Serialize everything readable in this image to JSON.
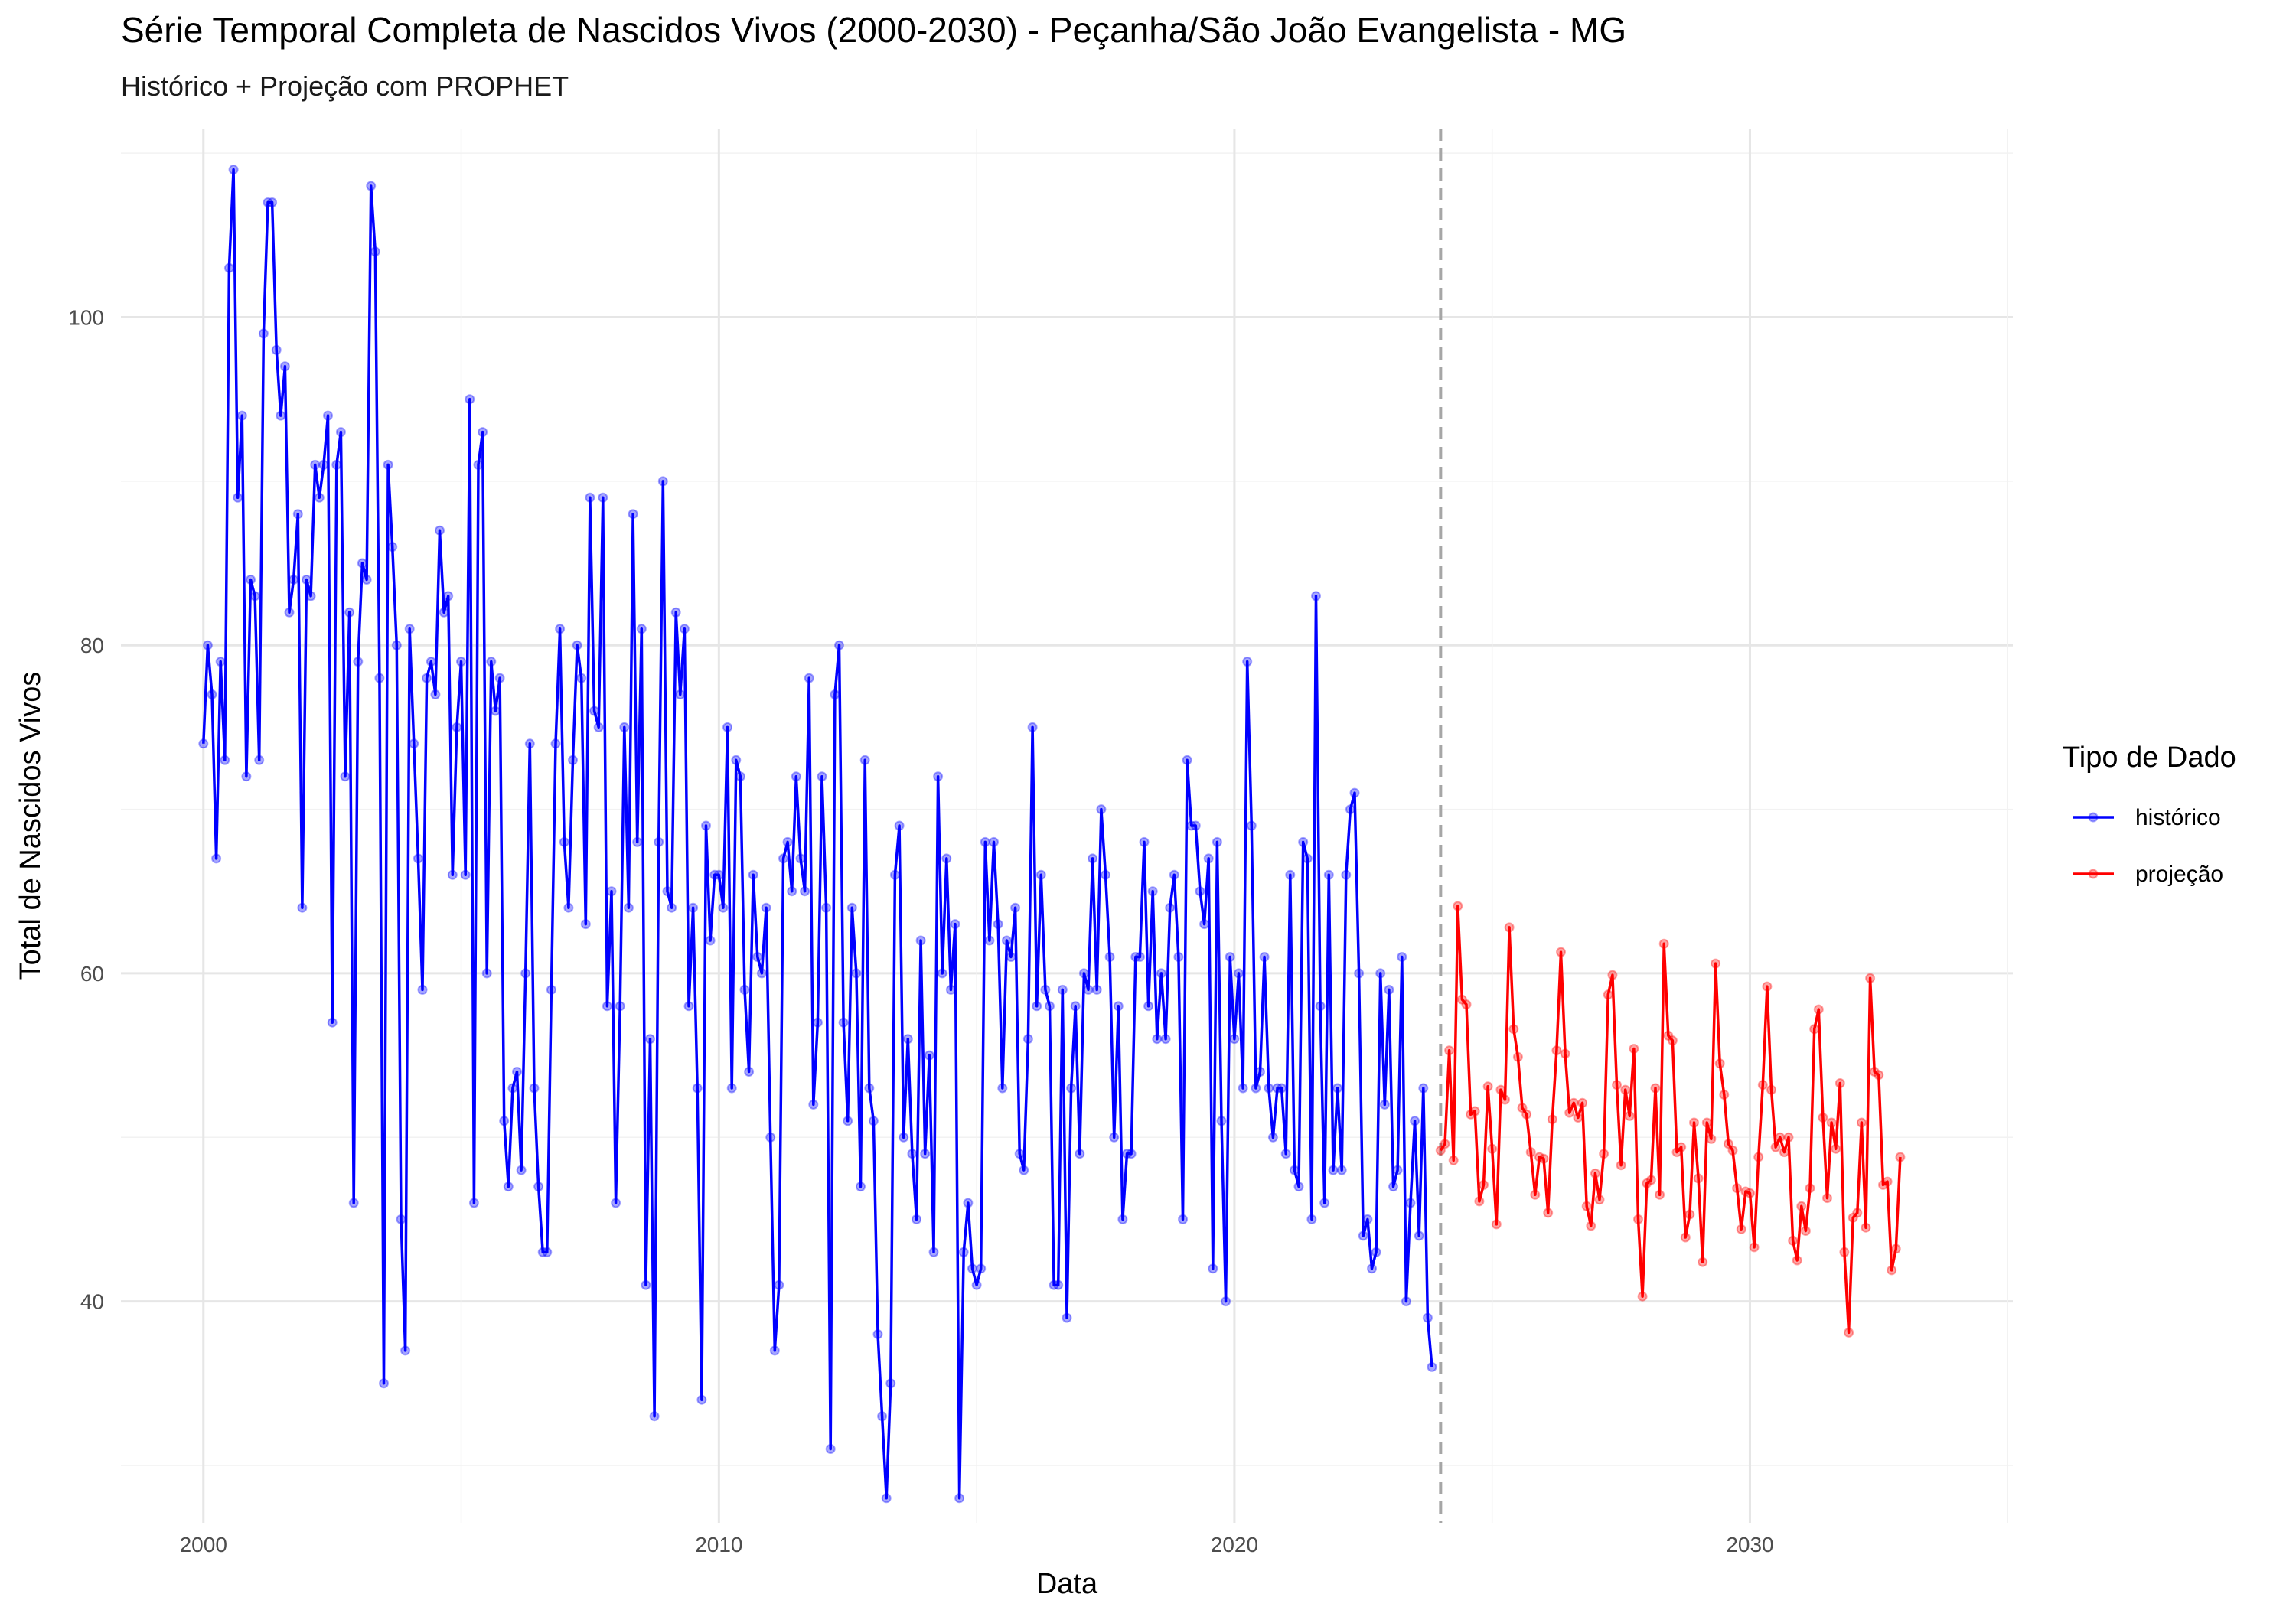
{
  "chart_data": {
    "type": "line",
    "title": "Série Temporal Completa de Nascidos Vivos (2000-2030) -  Peçanha/São João Evangelista - MG",
    "subtitle": "Histórico + Projeção com PROPHET",
    "xlabel": "Data",
    "ylabel": "Total de Nascidos Vivos",
    "x_ticks": [
      "2000",
      "2010",
      "2020",
      "2030"
    ],
    "y_ticks": [
      40,
      60,
      80,
      100
    ],
    "xlim": [
      1998.4,
      2035.1
    ],
    "ylim": [
      26.5,
      111.5
    ],
    "grid": true,
    "legend_title": "Tipo de Dado",
    "legend_placement": "right",
    "forecast_start": 2024.0,
    "series": [
      {
        "name": "histórico",
        "color": "#0000ff",
        "start": 2000.0,
        "step": 0.08333,
        "values": [
          74,
          80,
          77,
          67,
          79,
          73,
          103,
          109,
          89,
          94,
          72,
          84,
          83,
          73,
          99,
          107,
          107,
          98,
          94,
          97,
          82,
          84,
          88,
          64,
          84,
          83,
          91,
          89,
          91,
          94,
          57,
          91,
          93,
          72,
          82,
          46,
          79,
          85,
          84,
          108,
          104,
          78,
          35,
          91,
          86,
          80,
          45,
          37,
          81,
          74,
          67,
          59,
          78,
          79,
          77,
          87,
          82,
          83,
          66,
          75,
          79,
          66,
          95,
          46,
          91,
          93,
          60,
          79,
          76,
          78,
          51,
          47,
          53,
          54,
          48,
          60,
          74,
          53,
          47,
          43,
          43,
          59,
          74,
          81,
          68,
          64,
          73,
          80,
          78,
          63,
          89,
          76,
          75,
          89,
          58,
          65,
          46,
          58,
          75,
          64,
          88,
          68,
          81,
          41,
          56,
          33,
          68,
          90,
          65,
          64,
          82,
          77,
          81,
          58,
          64,
          53,
          34,
          69,
          62,
          66,
          66,
          64,
          75,
          53,
          73,
          72,
          59,
          54,
          66,
          61,
          60,
          64,
          50,
          37,
          41,
          67,
          68,
          65,
          72,
          67,
          65,
          78,
          52,
          57,
          72,
          64,
          31,
          77,
          80,
          57,
          51,
          64,
          60,
          47,
          73,
          53,
          51,
          38,
          33,
          28,
          35,
          66,
          69,
          50,
          56,
          49,
          45,
          62,
          49,
          55,
          43,
          72,
          60,
          67,
          59,
          63,
          28,
          43,
          46,
          42,
          41,
          42,
          68,
          62,
          68,
          63,
          53,
          62,
          61,
          64,
          49,
          48,
          56,
          75,
          58,
          66,
          59,
          58,
          41,
          41,
          59,
          39,
          53,
          58,
          49,
          60,
          59,
          67,
          59,
          70,
          66,
          61,
          50,
          58,
          45,
          49,
          49,
          61,
          61,
          68,
          58,
          65,
          56,
          60,
          56,
          64,
          66,
          61,
          45,
          73,
          69,
          69,
          65,
          63,
          67,
          42,
          68,
          51,
          40,
          61,
          56,
          60,
          53,
          79,
          69,
          53,
          54,
          61,
          53,
          50,
          53,
          53,
          49,
          66,
          48,
          47,
          68,
          67,
          45,
          83,
          58,
          46,
          66,
          48,
          53,
          48,
          66,
          70,
          71,
          60,
          44,
          45,
          42,
          43,
          60,
          52,
          59,
          47,
          48,
          61,
          40,
          46,
          51,
          44,
          53,
          39,
          36
        ]
      },
      {
        "name": "projeção",
        "color": "#ff0000",
        "start": 2024.0,
        "step": 0.08333,
        "values": [
          49.2,
          49.6,
          55.3,
          48.6,
          64.1,
          58.4,
          58.1,
          51.4,
          51.6,
          46.1,
          47.1,
          53.1,
          49.3,
          44.7,
          52.9,
          52.3,
          62.8,
          56.6,
          54.9,
          51.8,
          51.4,
          49.1,
          46.5,
          48.8,
          48.7,
          45.4,
          51.1,
          55.3,
          61.3,
          55.1,
          51.5,
          52.1,
          51.2,
          52.1,
          45.8,
          44.6,
          47.8,
          46.2,
          49.0,
          58.7,
          59.9,
          53.2,
          48.3,
          52.9,
          51.3,
          55.4,
          45.0,
          40.3,
          47.2,
          47.4,
          53.0,
          46.5,
          61.8,
          56.2,
          55.9,
          49.1,
          49.4,
          43.9,
          45.3,
          50.9,
          47.5,
          42.4,
          50.9,
          49.9,
          60.6,
          54.5,
          52.6,
          49.6,
          49.2,
          46.9,
          44.4,
          46.7,
          46.6,
          43.3,
          48.8,
          53.2,
          59.2,
          52.9,
          49.4,
          50.0,
          49.1,
          50.0,
          43.7,
          42.5,
          45.8,
          44.3,
          46.9,
          56.6,
          57.8,
          51.2,
          46.3,
          50.9,
          49.3,
          53.3,
          43.0,
          38.1,
          45.1,
          45.4,
          50.9,
          44.5,
          59.7,
          54.0,
          53.8,
          47.1,
          47.3,
          41.9,
          43.2,
          48.8
        ]
      }
    ]
  }
}
